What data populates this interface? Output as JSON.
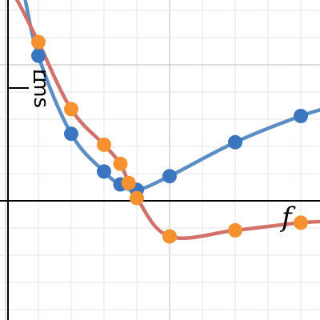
{
  "chart_data": {
    "type": "line",
    "xlabel": "f",
    "ylabel": "rms",
    "xlim": [
      -1,
      1
    ],
    "ylim": [
      -1,
      1
    ],
    "grid": true,
    "legend": "none",
    "colors": {
      "series_blue": "#5b8ec4",
      "series_red": "#d2706a",
      "point_blue": "#3a76c0",
      "point_orange": "#f5922f",
      "axis": "#000000"
    },
    "series": [
      {
        "values": [
          {
            "x": -0.8,
            "y": 0.53
          },
          {
            "x": -0.6,
            "y": 0.245
          },
          {
            "x": -0.4,
            "y": 0.107
          },
          {
            "x": -0.3,
            "y": 0.06
          },
          {
            "x": -0.2,
            "y": 0.04
          },
          {
            "x": 0.0,
            "y": 0.09
          },
          {
            "x": 0.4,
            "y": 0.214
          },
          {
            "x": 0.8,
            "y": 0.31
          }
        ]
      },
      {
        "values": [
          {
            "x": -0.8,
            "y": 0.58
          },
          {
            "x": -0.6,
            "y": 0.335
          },
          {
            "x": -0.4,
            "y": 0.205
          },
          {
            "x": -0.3,
            "y": 0.135
          },
          {
            "x": -0.25,
            "y": 0.065
          },
          {
            "x": -0.2,
            "y": 0.01
          },
          {
            "x": 0.0,
            "y": -0.13
          },
          {
            "x": 0.4,
            "y": -0.108
          },
          {
            "x": 0.8,
            "y": -0.08
          }
        ]
      }
    ]
  }
}
